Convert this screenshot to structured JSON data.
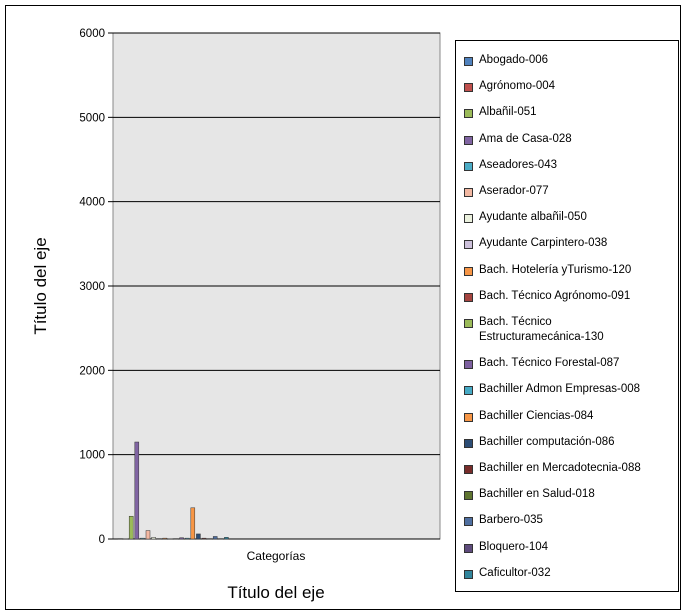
{
  "chart_data": {
    "type": "bar",
    "categories": [
      "Categorías"
    ],
    "xlabel": "Título del eje",
    "ylabel": "Título del eje",
    "ylim": [
      0,
      6000
    ],
    "yticks": [
      0,
      1000,
      2000,
      3000,
      4000,
      5000,
      6000
    ],
    "grid": true,
    "legend_position": "right",
    "colors": [
      "#4f81bd",
      "#c0504d",
      "#9bbb59",
      "#8064a2",
      "#4bacc6",
      "#f2b8a2",
      "#ebf1de",
      "#ccc0da",
      "#f79646",
      "#a5443f",
      "#9bbb59",
      "#7d60a0",
      "#46aac5",
      "#f79646",
      "#2c4d75",
      "#772c2a",
      "#5f7530",
      "#4f6fa0",
      "#5e4b7c",
      "#31859c"
    ],
    "series": [
      {
        "name": "Abogado-006",
        "values": [
          5
        ]
      },
      {
        "name": "Agrónomo-004",
        "values": [
          3
        ]
      },
      {
        "name": "Albañil-051",
        "values": [
          270
        ]
      },
      {
        "name": "Ama de Casa-028",
        "values": [
          1150
        ]
      },
      {
        "name": "Aseadores-043",
        "values": [
          10
        ]
      },
      {
        "name": "Aserador-077",
        "values": [
          100
        ]
      },
      {
        "name": "Ayudante albañil-050",
        "values": [
          20
        ]
      },
      {
        "name": "Ayudante Carpintero-038",
        "values": [
          5
        ]
      },
      {
        "name": "Bach. Hotelería yTurismo-120",
        "values": [
          10
        ]
      },
      {
        "name": "Bach. Técnico Agrónomo-091",
        "values": [
          3
        ]
      },
      {
        "name": "Bach. Técnico Estructuramecánica-130",
        "values": [
          5
        ]
      },
      {
        "name": "Bach. Técnico Forestal-087",
        "values": [
          15
        ]
      },
      {
        "name": "Bachiller Admon Empresas-008",
        "values": [
          10
        ]
      },
      {
        "name": "Bachiller Ciencias-084",
        "values": [
          370
        ]
      },
      {
        "name": "Bachiller computación-086",
        "values": [
          60
        ]
      },
      {
        "name": "Bachiller en Mercadotecnia-088",
        "values": [
          10
        ]
      },
      {
        "name": "Bachiller en Salud-018",
        "values": [
          5
        ]
      },
      {
        "name": "Barbero-035",
        "values": [
          30
        ]
      },
      {
        "name": "Bloquero-104",
        "values": [
          5
        ]
      },
      {
        "name": "Caficultor-032",
        "values": [
          20
        ]
      }
    ]
  }
}
